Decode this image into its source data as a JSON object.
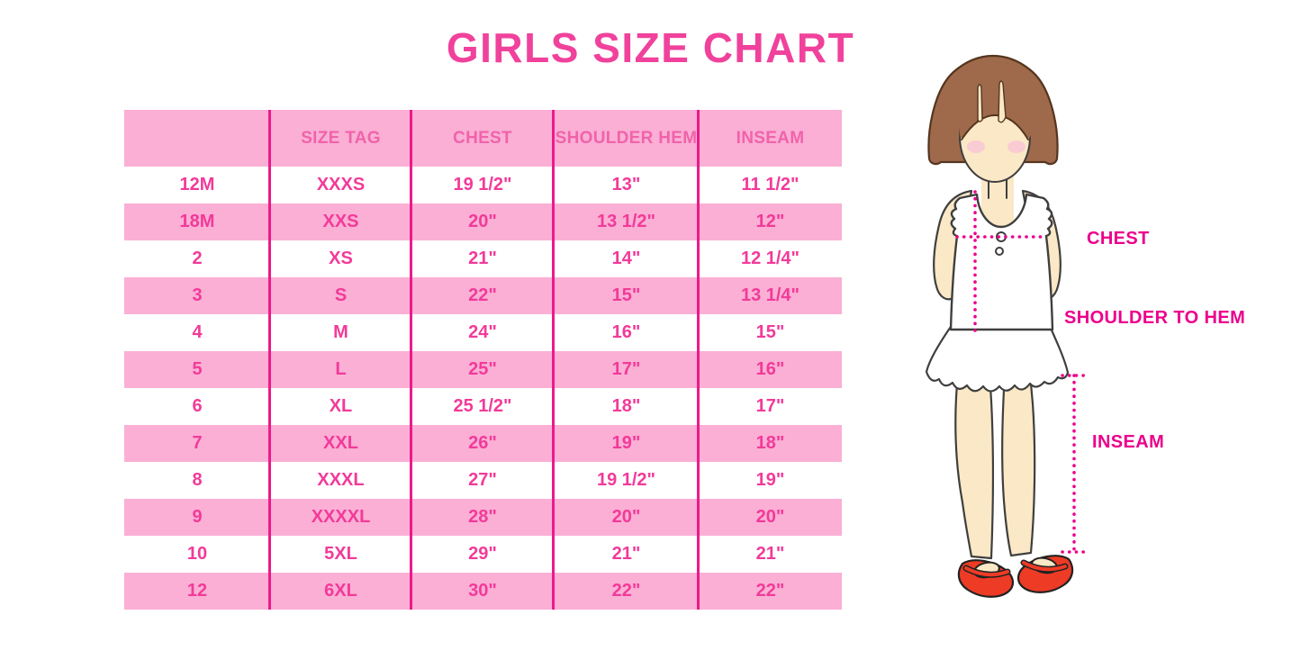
{
  "page": {
    "title": "GIRLS SIZE CHART"
  },
  "chart_data": {
    "type": "table",
    "title": "GIRLS SIZE CHART",
    "columns": [
      "",
      "SIZE TAG",
      "CHEST",
      "SHOULDER HEM",
      "INSEAM"
    ],
    "rows": [
      [
        "12M",
        "XXXS",
        "19 1/2\"",
        "13\"",
        "11 1/2\""
      ],
      [
        "18M",
        "XXS",
        "20\"",
        "13 1/2\"",
        "12\""
      ],
      [
        "2",
        "XS",
        "21\"",
        "14\"",
        "12 1/4\""
      ],
      [
        "3",
        "S",
        "22\"",
        "15\"",
        "13 1/4\""
      ],
      [
        "4",
        "M",
        "24\"",
        "16\"",
        "15\""
      ],
      [
        "5",
        "L",
        "25\"",
        "17\"",
        "16\""
      ],
      [
        "6",
        "XL",
        "25 1/2\"",
        "18\"",
        "17\""
      ],
      [
        "7",
        "XXL",
        "26\"",
        "19\"",
        "18\""
      ],
      [
        "8",
        "XXXL",
        "27\"",
        "19 1/2\"",
        "19\""
      ],
      [
        "9",
        "XXXXL",
        "28\"",
        "20\"",
        "20\""
      ],
      [
        "10",
        "5XL",
        "29\"",
        "21\"",
        "21\""
      ],
      [
        "12",
        "6XL",
        "30\"",
        "22\"",
        "22\""
      ]
    ]
  },
  "diagram": {
    "labels": {
      "chest": "CHEST",
      "shoulder_to_hem": "SHOULDER TO HEM",
      "inseam": "INSEAM"
    }
  },
  "colors": {
    "row_pink": "#FBAFD5",
    "line_magenta": "#EC1A8C",
    "title_pink": "#F0429C",
    "header_text": "#F063AA",
    "cell_text": "#F23A99",
    "label_magenta": "#EC008C",
    "hair_brown": "#9F6A4B",
    "hair_outline": "#54351F",
    "skin": "#FBE8C6",
    "blush_pink": "#F8C9D4",
    "shoe_red": "#EE3B26",
    "outline_dark": "#3F3F3F"
  }
}
